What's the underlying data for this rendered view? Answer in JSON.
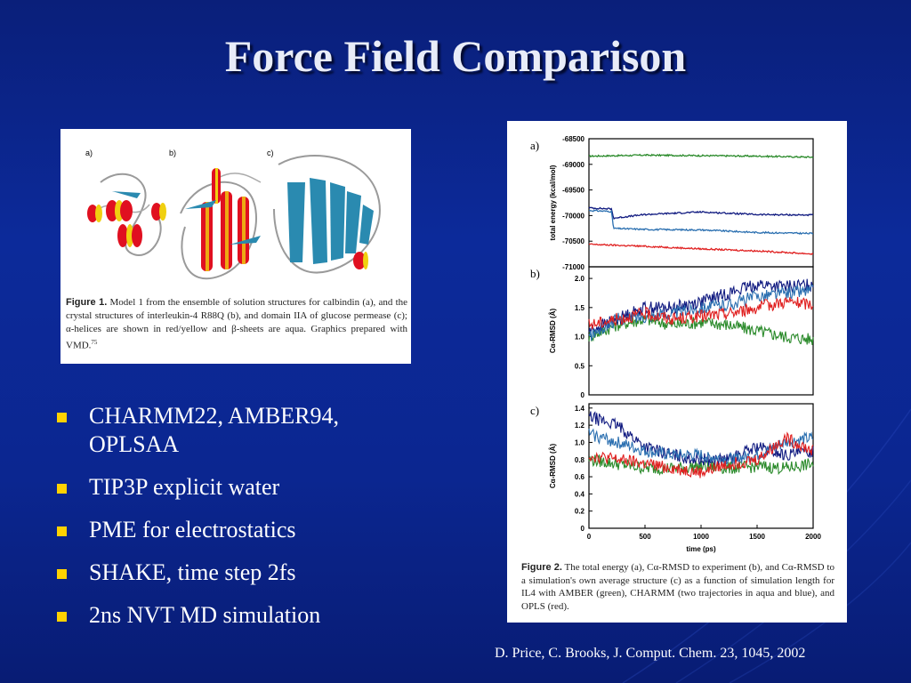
{
  "slide": {
    "title": "Force Field Comparison",
    "citation": "D. Price, C. Brooks, J. Comput. Chem. 23, 1045, 2002",
    "bullets": [
      "CHARMM22, AMBER94, OPLSAA",
      "TIP3P explicit water",
      "PME for electrostatics",
      "SHAKE, time step 2fs",
      "2ns NVT MD simulation"
    ],
    "colors": {
      "bullet": "#ffd200",
      "background": "#0c2a9a"
    }
  },
  "figure1": {
    "panel_labels": [
      "a)",
      "b)",
      "c)"
    ],
    "caption_label": "Figure 1.",
    "caption_text": "Model 1 from the ensemble of solution structures for calbindin (a), and the crystal structures of interleukin-4 R88Q (b), and domain IIA of glucose permease (c); α-helices are shown in red/yellow and β-sheets are aqua. Graphics prepared with VMD.",
    "caption_ref": "75"
  },
  "figure2": {
    "caption_label": "Figure 2.",
    "caption_text": "The total energy (a), Cα-RMSD to experiment (b), and Cα-RMSD to a simulation's own average structure (c) as a function of simulation length for IL4 with AMBER (green), CHARMM (two trajectories in aqua and blue), and OPLS (red).",
    "xlabel": "time (ps)"
  },
  "chart_data": [
    {
      "type": "line",
      "panel": "a)",
      "ylabel": "total energy (kcal/mol)",
      "xlim": [
        0,
        2000
      ],
      "ylim": [
        -71000,
        -68500
      ],
      "yticks": [
        "-68500",
        "-69000",
        "-69500",
        "-70000",
        "-70500",
        "-71000"
      ],
      "series": [
        {
          "color": "#2a8a2a",
          "x": [
            0,
            500,
            1000,
            1500,
            2000
          ],
          "values": [
            -68840,
            -68820,
            -68830,
            -68840,
            -68860
          ]
        },
        {
          "color": "#101a80",
          "x": [
            0,
            200,
            220,
            500,
            1000,
            1500,
            2000
          ],
          "values": [
            -69850,
            -69870,
            -70050,
            -69980,
            -69930,
            -69980,
            -69990
          ]
        },
        {
          "color": "#2a6fb0",
          "x": [
            0,
            200,
            220,
            500,
            1000,
            1500,
            2000
          ],
          "values": [
            -69900,
            -69920,
            -70250,
            -70270,
            -70280,
            -70330,
            -70350
          ]
        },
        {
          "color": "#e02020",
          "x": [
            0,
            500,
            1000,
            1500,
            2000
          ],
          "values": [
            -70560,
            -70600,
            -70650,
            -70690,
            -70750
          ]
        }
      ]
    },
    {
      "type": "line",
      "panel": "b)",
      "ylabel": "Cα-RMSD (Å)",
      "xlim": [
        0,
        2000
      ],
      "ylim": [
        0,
        2.2
      ],
      "yticks": [
        "0",
        "0.5",
        "1.0",
        "1.5",
        "2.0"
      ],
      "series": [
        {
          "color": "#2a8a2a",
          "x": [
            0,
            250,
            500,
            750,
            1000,
            1250,
            1500,
            1750,
            2000
          ],
          "values": [
            1.0,
            1.2,
            1.3,
            1.2,
            1.25,
            1.2,
            1.1,
            1.0,
            0.95
          ]
        },
        {
          "color": "#101a80",
          "x": [
            0,
            250,
            500,
            750,
            1000,
            1250,
            1500,
            1750,
            2000
          ],
          "values": [
            1.1,
            1.3,
            1.5,
            1.5,
            1.6,
            1.75,
            1.9,
            1.85,
            1.9
          ]
        },
        {
          "color": "#2a6fb0",
          "x": [
            0,
            250,
            500,
            750,
            1000,
            1250,
            1500,
            1750,
            2000
          ],
          "values": [
            1.0,
            1.3,
            1.35,
            1.4,
            1.5,
            1.55,
            1.7,
            1.75,
            1.8
          ]
        },
        {
          "color": "#e02020",
          "x": [
            0,
            250,
            500,
            750,
            1000,
            1250,
            1500,
            1750,
            2000
          ],
          "values": [
            1.2,
            1.3,
            1.4,
            1.3,
            1.35,
            1.4,
            1.5,
            1.6,
            1.55
          ]
        }
      ]
    },
    {
      "type": "line",
      "panel": "c)",
      "ylabel": "Cα-RMSD (Å)",
      "xlim": [
        0,
        2000
      ],
      "ylim": [
        0,
        1.45
      ],
      "xticks": [
        "0",
        "500",
        "1000",
        "1500",
        "2000"
      ],
      "yticks": [
        "0",
        "0.2",
        "0.4",
        "0.6",
        "0.8",
        "1.0",
        "1.2",
        "1.4"
      ],
      "series": [
        {
          "color": "#2a8a2a",
          "x": [
            0,
            250,
            500,
            750,
            1000,
            1250,
            1500,
            1750,
            2000
          ],
          "values": [
            0.8,
            0.75,
            0.7,
            0.7,
            0.72,
            0.7,
            0.72,
            0.7,
            0.75
          ]
        },
        {
          "color": "#101a80",
          "x": [
            0,
            250,
            500,
            750,
            1000,
            1250,
            1500,
            1750,
            2000
          ],
          "values": [
            1.3,
            1.2,
            0.95,
            0.85,
            0.8,
            0.8,
            0.95,
            0.85,
            0.9
          ]
        },
        {
          "color": "#2a6fb0",
          "x": [
            0,
            250,
            500,
            750,
            1000,
            1250,
            1500,
            1750,
            2000
          ],
          "values": [
            1.1,
            1.0,
            0.9,
            0.85,
            0.85,
            0.8,
            0.85,
            1.0,
            1.05
          ]
        },
        {
          "color": "#e02020",
          "x": [
            0,
            250,
            500,
            750,
            1000,
            1250,
            1500,
            1750,
            2000
          ],
          "values": [
            0.85,
            0.8,
            0.75,
            0.7,
            0.65,
            0.75,
            0.8,
            1.05,
            0.9
          ]
        }
      ]
    }
  ]
}
